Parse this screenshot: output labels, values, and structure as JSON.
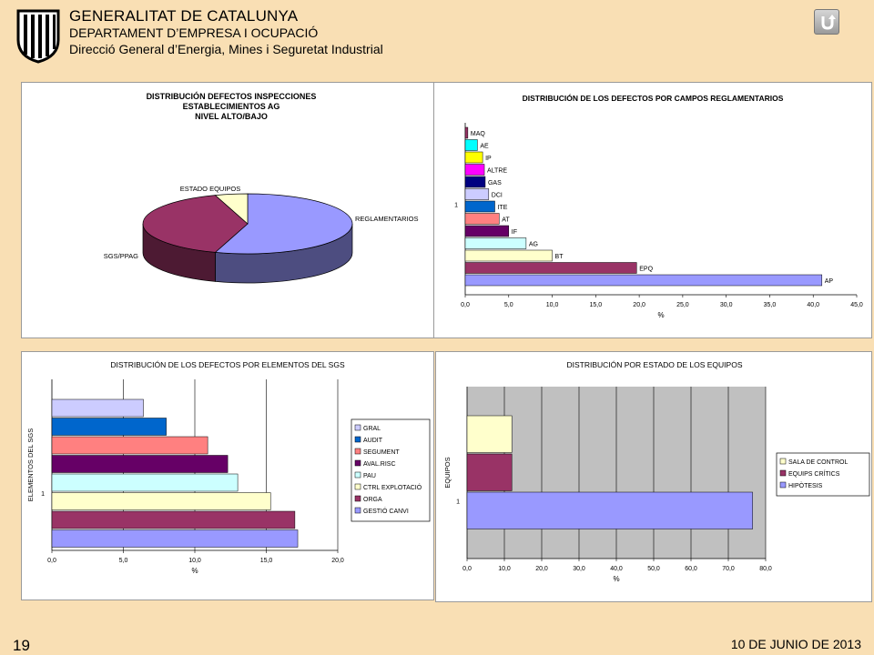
{
  "header": {
    "line1": "GENERALITAT DE CATALUNYA",
    "line2": "DEPARTAMENT D’EMPRESA I OCUPACIÓ",
    "line3": "Direcció General d’Energia, Mines i Seguretat Industrial"
  },
  "footer": {
    "page": "19",
    "date": "10 DE JUNIO DE 2013"
  },
  "chart_data": [
    {
      "type": "pie",
      "title": [
        "DISTRIBUCIÓN DEFECTOS INSPECCIONES",
        "ESTABLECIMIENTOS AG",
        "NIVEL ALTO/BAJO"
      ],
      "categories": [
        "REGLAMENTARIOS",
        "SGS/PPAG",
        "ESTADO EQUIPOS"
      ],
      "values": [
        55,
        40,
        5
      ],
      "colors": [
        "#9999ff",
        "#993366",
        "#ffffcc"
      ]
    },
    {
      "type": "bar",
      "title": "DISTRIBUCIÓN DE LOS DEFECTOS POR CAMPOS REGLAMENTARIOS",
      "xlabel": "%",
      "ycategory": "1",
      "xlim": [
        0,
        45
      ],
      "xticks": [
        "0,0",
        "5,0",
        "10,0",
        "15,0",
        "20,0",
        "25,0",
        "30,0",
        "35,0",
        "40,0",
        "45,0"
      ],
      "categories": [
        "MAQ",
        "AE",
        "IP",
        "ALTRE",
        "GAS",
        "DCI",
        "ITE",
        "AT",
        "IF",
        "AG",
        "BT",
        "EPQ",
        "AP"
      ],
      "values": [
        0.3,
        1.4,
        2.0,
        2.2,
        2.3,
        2.7,
        3.4,
        3.9,
        5.0,
        7.0,
        10.0,
        19.7,
        41.0
      ],
      "colors": [
        "#993366",
        "#00ffff",
        "#ffff00",
        "#ff00ff",
        "#000080",
        "#ccccff",
        "#0066cc",
        "#ff8080",
        "#660066",
        "#ccffff",
        "#ffffcc",
        "#993366",
        "#9999ff"
      ]
    },
    {
      "type": "bar",
      "title": "DISTRIBUCIÓN DE LOS DEFECTOS POR ELEMENTOS DEL SGS",
      "xlabel": "%",
      "ylabel": "ELEMENTOS DEL SGS",
      "ycategory": "1",
      "xlim": [
        0,
        20
      ],
      "xticks": [
        "0,0",
        "5,0",
        "10,0",
        "15,0",
        "20,0"
      ],
      "categories": [
        "GRAL",
        "AUDIT",
        "SEGUMENT",
        "AVAL.RISC",
        "PAU",
        "CTRL EXPLOTACIÓ",
        "ORGA",
        "GESTIÓ CANVI"
      ],
      "values": [
        6.4,
        8.0,
        10.9,
        12.3,
        13.0,
        15.3,
        17.0,
        17.2
      ],
      "colors": [
        "#ccccff",
        "#0066cc",
        "#ff8080",
        "#660066",
        "#ccffff",
        "#ffffcc",
        "#993366",
        "#9999ff"
      ]
    },
    {
      "type": "bar",
      "title": "DISTRIBUCIÓN POR ESTADO DE LOS EQUIPOS",
      "xlabel": "%",
      "ylabel": "EQUIPOS",
      "ycategory": "1",
      "xlim": [
        0,
        80
      ],
      "xticks": [
        "0,0",
        "10,0",
        "20,0",
        "30,0",
        "40,0",
        "50,0",
        "60,0",
        "70,0",
        "80,0"
      ],
      "categories": [
        "SALA DE CONTROL",
        "EQUIPS CRÍTICS",
        "HIPÒTESIS"
      ],
      "values": [
        12.0,
        12.0,
        76.5
      ],
      "colors": [
        "#ffffcc",
        "#993366",
        "#9999ff"
      ]
    }
  ]
}
